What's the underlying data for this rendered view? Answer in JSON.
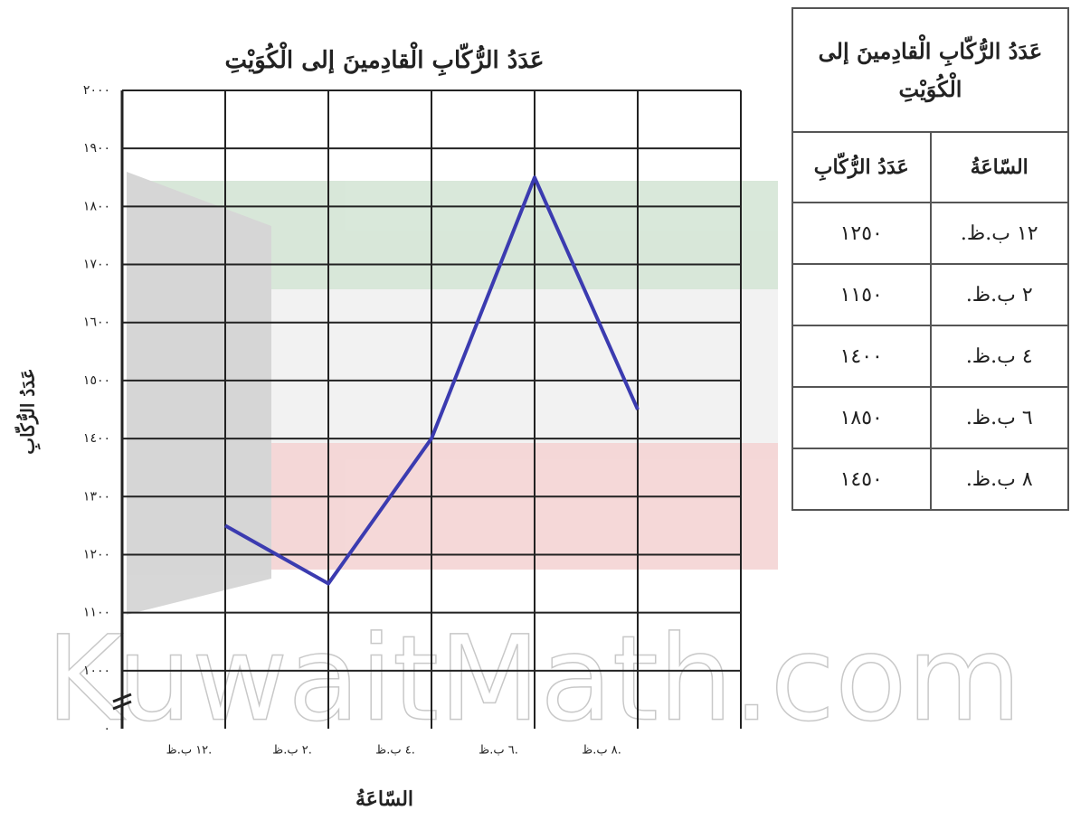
{
  "chart_data": {
    "type": "line",
    "title": "عَدَدُ الرُّكّابِ الْقادِمينَ إلى الْكُوَيْتِ",
    "x_label": "السّاعَةُ",
    "y_label": "عَدَدُ الرُّكّابِ",
    "categories": [
      "١٢ ب.ظ.",
      "٢ ب.ظ.",
      "٤ ب.ظ.",
      "٦ ب.ظ.",
      "٨ ب.ظ."
    ],
    "values": [
      1250,
      1150,
      1400,
      1850,
      1450
    ],
    "color": "#3b3bb0",
    "ylim": [
      900,
      2000
    ],
    "yticks": [
      {
        "value": 1000,
        "label": "١٠٠٠"
      },
      {
        "value": 1100,
        "label": "١١٠٠"
      },
      {
        "value": 1200,
        "label": "١٢٠٠"
      },
      {
        "value": 1300,
        "label": "١٣٠٠"
      },
      {
        "value": 1400,
        "label": "١٤٠٠"
      },
      {
        "value": 1500,
        "label": "١٥٠٠"
      },
      {
        "value": 1600,
        "label": "١٦٠٠"
      },
      {
        "value": 1700,
        "label": "١٧٠٠"
      },
      {
        "value": 1800,
        "label": "١٨٠٠"
      },
      {
        "value": 1900,
        "label": "١٩٠٠"
      },
      {
        "value": 2000,
        "label": "٢٠٠٠"
      }
    ],
    "y_zero_label": "٠",
    "grid": true
  },
  "table": {
    "title": "عَدَدُ الرُّكّابِ الْقادِمينَ إلى الْكُوَيْتِ",
    "header": [
      "السّاعَةُ",
      "عَدَدُ الرُّكّابِ"
    ],
    "rows": [
      [
        "١٢ ب.ظ.",
        "١٢٥٠"
      ],
      [
        "٢ ب.ظ.",
        "١١٥٠"
      ],
      [
        "٤ ب.ظ.",
        "١٤٠٠"
      ],
      [
        "٦ ب.ظ.",
        "١٨٥٠"
      ],
      [
        "٨ ب.ظ.",
        "١٤٥٠"
      ]
    ]
  },
  "watermark": "KuwaitMath.com"
}
